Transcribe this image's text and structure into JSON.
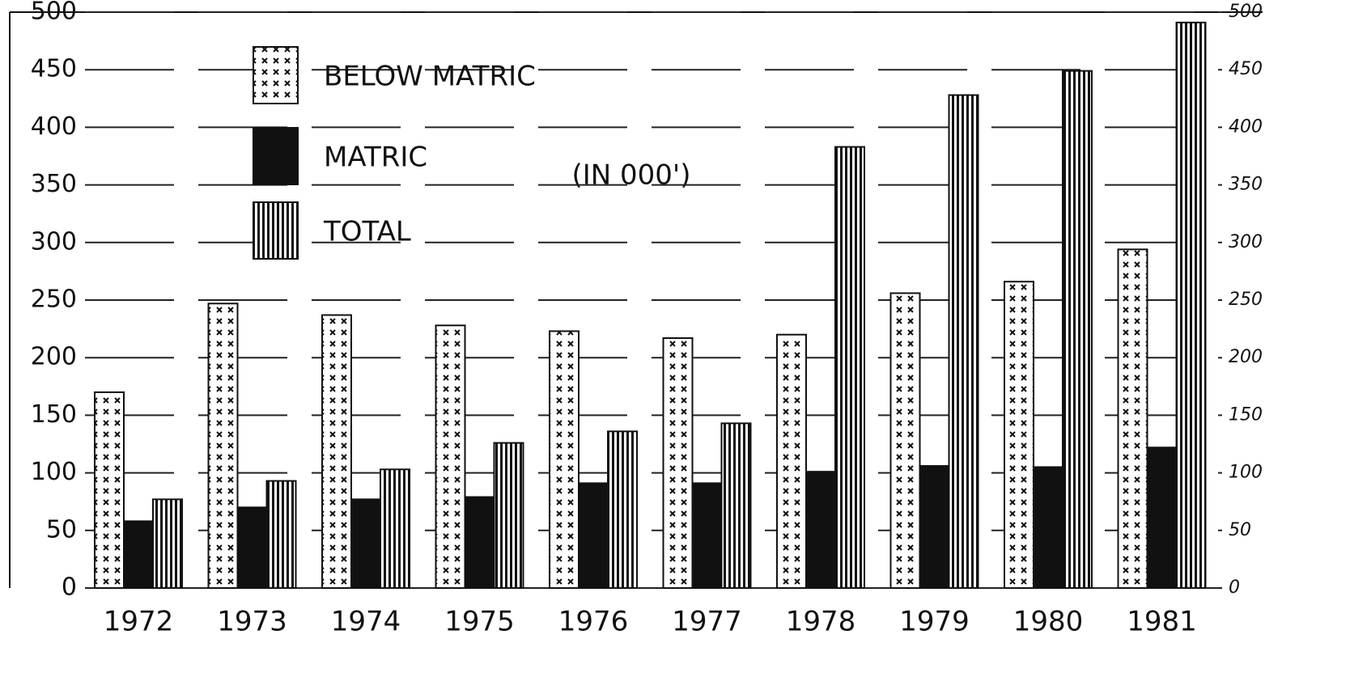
{
  "chart_data": {
    "type": "bar",
    "annotation": "(IN 000')",
    "categories": [
      "1972",
      "1973",
      "1974",
      "1975",
      "1976",
      "1977",
      "1978",
      "1979",
      "1980",
      "1981"
    ],
    "series": [
      {
        "name": "BELOW MATRIC",
        "color": "#111111",
        "pattern": "cross",
        "values": [
          170,
          247,
          237,
          228,
          223,
          217,
          220,
          256,
          266,
          294
        ]
      },
      {
        "name": "MATRIC",
        "color": "#111111",
        "pattern": "solid",
        "values": [
          58,
          70,
          77,
          79,
          91,
          91,
          101,
          106,
          105,
          122
        ]
      },
      {
        "name": "TOTAL",
        "color": "#111111",
        "pattern": "stripes",
        "values": [
          77,
          93,
          103,
          126,
          136,
          143,
          383,
          428,
          449,
          491
        ]
      }
    ],
    "ylim": [
      0,
      500
    ],
    "yticks": [
      0,
      50,
      100,
      150,
      200,
      250,
      300,
      350,
      400,
      450,
      500
    ],
    "y2lim": [
      0,
      500
    ],
    "y2ticks": [
      0,
      50,
      100,
      150,
      200,
      250,
      300,
      350,
      400,
      450,
      500
    ],
    "grid": true
  }
}
